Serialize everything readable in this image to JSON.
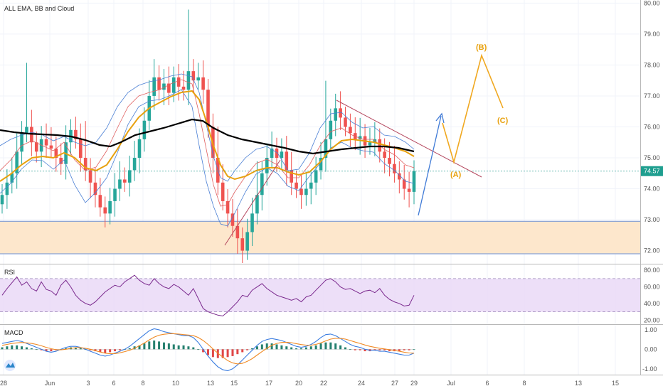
{
  "indicator_title": "ALL EMA, BB and Cloud",
  "rsi_title": "RSI",
  "macd_title": "MACD",
  "price_tag": "74.57",
  "colors": {
    "up": "#26a69a",
    "down": "#ef5350",
    "ema_fast": "#e8a10e",
    "ema_slow": "#000000",
    "bb": "#4a7fd4",
    "rsi_line": "#7b2a8e",
    "rsi_band": "#ead9f7",
    "zone_fill": "#fde7cc",
    "zone_line": "#6a8fd4",
    "wave": "#f0a820",
    "projection": "#3f7ad6",
    "trendline": "#b4475e"
  },
  "chart_data": [
    {
      "type": "candlestick",
      "title": "ALL EMA, BB and Cloud",
      "x_ticks": [
        "28",
        "Jun",
        "3",
        "6",
        "8",
        "10",
        "13",
        "15",
        "17",
        "20",
        "22",
        "24",
        "27",
        "29",
        "Jul",
        "6",
        "8",
        "13",
        "15"
      ],
      "y_ticks": [
        "72.00",
        "73.00",
        "74.00",
        "75.00",
        "76.00",
        "77.00",
        "78.00",
        "79.00",
        "80.00"
      ],
      "ylim": [
        71.6,
        80.1
      ],
      "last_price": 74.57,
      "support_zone": [
        71.9,
        72.95
      ],
      "candle_closes": [
        73.8,
        74.2,
        74.5,
        75.2,
        75.8,
        76.0,
        75.5,
        75.2,
        75.6,
        75.4,
        75.3,
        75.0,
        74.8,
        75.5,
        75.9,
        75.6,
        75.0,
        74.6,
        74.2,
        73.8,
        73.4,
        73.2,
        73.6,
        74.0,
        74.3,
        74.2,
        74.6,
        75.0,
        75.6,
        76.2,
        77.0,
        77.6,
        77.2,
        77.4,
        77.1,
        77.6,
        77.3,
        77.2,
        77.8,
        77.5,
        77.6,
        77.2,
        76.0,
        75.0,
        74.2,
        73.6,
        73.2,
        72.8,
        72.4,
        72.0,
        72.6,
        73.2,
        73.8,
        74.5,
        75.0,
        75.3,
        75.0,
        75.2,
        74.6,
        74.2,
        74.0,
        73.8,
        74.0,
        74.2,
        74.6,
        75.0,
        75.6,
        76.2,
        76.6,
        76.3,
        76.0,
        75.8,
        75.6,
        75.7,
        75.4,
        75.5,
        75.6,
        75.2,
        75.0,
        74.8,
        74.5,
        74.3,
        74.0,
        73.9,
        74.57
      ]
    },
    {
      "type": "line",
      "title": "RSI",
      "y_ticks": [
        "20.00",
        "40.00",
        "60.00",
        "80.00"
      ],
      "ylim": [
        16,
        87
      ],
      "bands": [
        30,
        70
      ],
      "values": [
        50,
        58,
        65,
        72,
        62,
        66,
        58,
        55,
        66,
        57,
        55,
        50,
        62,
        68,
        60,
        50,
        44,
        40,
        38,
        42,
        48,
        54,
        58,
        62,
        60,
        66,
        70,
        74,
        68,
        64,
        62,
        70,
        64,
        60,
        58,
        63,
        60,
        55,
        50,
        58,
        46,
        34,
        30,
        28,
        26,
        25,
        30,
        36,
        42,
        50,
        48,
        56,
        60,
        64,
        58,
        54,
        50,
        48,
        46,
        44,
        46,
        42,
        48,
        50,
        56,
        62,
        68,
        70,
        66,
        60,
        57,
        58,
        55,
        52,
        55,
        56,
        53,
        58,
        50,
        45,
        42,
        40,
        37,
        38,
        50
      ]
    },
    {
      "type": "bar",
      "title": "MACD",
      "y_ticks": [
        "-1.00",
        "0.00",
        "1.00"
      ],
      "ylim": [
        -1.3,
        1.25
      ],
      "histogram": [
        0.1,
        0.15,
        0.2,
        0.2,
        0.15,
        0.1,
        0.05,
        0.0,
        -0.05,
        -0.1,
        -0.1,
        -0.05,
        0.0,
        0.05,
        0.1,
        0.1,
        0.05,
        0.0,
        -0.05,
        -0.1,
        -0.15,
        -0.2,
        -0.15,
        -0.1,
        -0.05,
        0.0,
        0.05,
        0.15,
        0.2,
        0.3,
        0.4,
        0.45,
        0.4,
        0.35,
        0.3,
        0.25,
        0.2,
        0.2,
        0.15,
        0.1,
        0.0,
        -0.15,
        -0.3,
        -0.4,
        -0.45,
        -0.45,
        -0.4,
        -0.35,
        -0.25,
        -0.15,
        -0.05,
        0.05,
        0.15,
        0.25,
        0.3,
        0.3,
        0.25,
        0.2,
        0.15,
        0.1,
        0.05,
        0.05,
        0.1,
        0.15,
        0.2,
        0.3,
        0.35,
        0.35,
        0.3,
        0.2,
        0.1,
        0.0,
        -0.05,
        -0.05,
        -0.1,
        -0.1,
        -0.05,
        -0.05,
        -0.05,
        -0.1,
        -0.1,
        -0.1,
        -0.05,
        -0.05,
        0.0
      ],
      "macd_line": [
        0.3,
        0.35,
        0.4,
        0.45,
        0.4,
        0.3,
        0.2,
        0.1,
        0.0,
        -0.1,
        -0.15,
        -0.1,
        0.0,
        0.1,
        0.15,
        0.15,
        0.1,
        0.0,
        -0.1,
        -0.2,
        -0.3,
        -0.35,
        -0.3,
        -0.2,
        -0.1,
        0.0,
        0.15,
        0.35,
        0.55,
        0.75,
        0.95,
        1.05,
        1.0,
        0.9,
        0.85,
        0.8,
        0.75,
        0.7,
        0.7,
        0.6,
        0.35,
        0.0,
        -0.35,
        -0.65,
        -0.9,
        -1.05,
        -1.1,
        -1.0,
        -0.8,
        -0.55,
        -0.3,
        -0.05,
        0.2,
        0.4,
        0.5,
        0.55,
        0.5,
        0.45,
        0.35,
        0.25,
        0.15,
        0.1,
        0.15,
        0.25,
        0.4,
        0.6,
        0.75,
        0.78,
        0.7,
        0.55,
        0.4,
        0.25,
        0.15,
        0.1,
        0.0,
        -0.05,
        -0.05,
        -0.1,
        -0.1,
        -0.15,
        -0.2,
        -0.25,
        -0.3,
        -0.3,
        -0.2
      ],
      "signal_line": [
        0.2,
        0.25,
        0.3,
        0.33,
        0.35,
        0.33,
        0.3,
        0.25,
        0.18,
        0.1,
        0.03,
        -0.02,
        -0.03,
        0.0,
        0.05,
        0.08,
        0.08,
        0.05,
        0.0,
        -0.07,
        -0.14,
        -0.2,
        -0.23,
        -0.22,
        -0.18,
        -0.12,
        -0.05,
        0.05,
        0.18,
        0.32,
        0.48,
        0.62,
        0.72,
        0.77,
        0.8,
        0.8,
        0.78,
        0.75,
        0.73,
        0.7,
        0.6,
        0.45,
        0.25,
        0.02,
        -0.2,
        -0.4,
        -0.58,
        -0.7,
        -0.75,
        -0.72,
        -0.62,
        -0.48,
        -0.3,
        -0.12,
        0.05,
        0.2,
        0.3,
        0.35,
        0.36,
        0.34,
        0.29,
        0.24,
        0.21,
        0.21,
        0.25,
        0.33,
        0.43,
        0.52,
        0.56,
        0.56,
        0.52,
        0.45,
        0.37,
        0.3,
        0.22,
        0.15,
        0.1,
        0.05,
        0.02,
        -0.02,
        -0.06,
        -0.1,
        -0.15,
        -0.19,
        -0.2
      ]
    }
  ],
  "wave_labels": [
    "(A)",
    "(B)",
    "(C)"
  ]
}
